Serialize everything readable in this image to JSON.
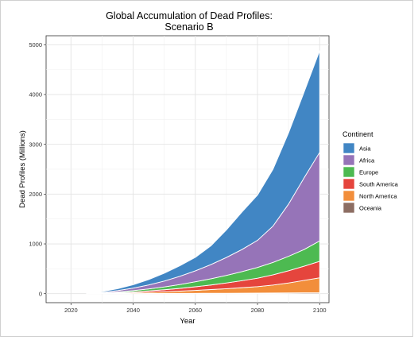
{
  "chart_data": {
    "type": "area",
    "stacked": true,
    "title": "Global Accumulation of Dead Profiles:",
    "subtitle": "Scenario B",
    "xlabel": "Year",
    "ylabel": "Dead Profiles (Millions)",
    "xlim": [
      2012,
      2103
    ],
    "ylim": [
      -180,
      5180
    ],
    "xticks": [
      2020,
      2040,
      2060,
      2080,
      2100
    ],
    "yticks": [
      0,
      1000,
      2000,
      3000,
      4000,
      5000
    ],
    "grid": true,
    "legend": {
      "title": "Continent",
      "position": "right"
    },
    "x": [
      2025,
      2030,
      2035,
      2040,
      2045,
      2050,
      2055,
      2060,
      2065,
      2070,
      2075,
      2080,
      2085,
      2090,
      2095,
      2100
    ],
    "series": [
      {
        "name": "Oceania",
        "color": "#8c6d62",
        "values": [
          0,
          1,
          2,
          3,
          4,
          5,
          6,
          7,
          8,
          9,
          11,
          12,
          14,
          16,
          18,
          20
        ]
      },
      {
        "name": "North America",
        "color": "#f28e3b",
        "values": [
          0,
          4,
          9,
          16,
          24,
          34,
          46,
          60,
          75,
          92,
          110,
          130,
          160,
          200,
          250,
          300
        ]
      },
      {
        "name": "South America",
        "color": "#e5453d",
        "values": [
          0,
          4,
          10,
          18,
          28,
          40,
          55,
          72,
          92,
          115,
          140,
          170,
          205,
          245,
          285,
          330
        ]
      },
      {
        "name": "Europe",
        "color": "#4dba51",
        "values": [
          0,
          6,
          14,
          25,
          40,
          57,
          77,
          100,
          125,
          152,
          182,
          215,
          250,
          290,
          335,
          410
        ]
      },
      {
        "name": "Africa",
        "color": "#9674b8",
        "values": [
          0,
          12,
          28,
          50,
          80,
          118,
          165,
          220,
          285,
          360,
          445,
          545,
          730,
          1050,
          1440,
          1780
        ]
      },
      {
        "name": "Asia",
        "color": "#4186c4",
        "values": [
          0,
          15,
          37,
          68,
          108,
          156,
          211,
          271,
          375,
          552,
          752,
          908,
          1141,
          1429,
          1722,
          2040
        ]
      }
    ]
  }
}
